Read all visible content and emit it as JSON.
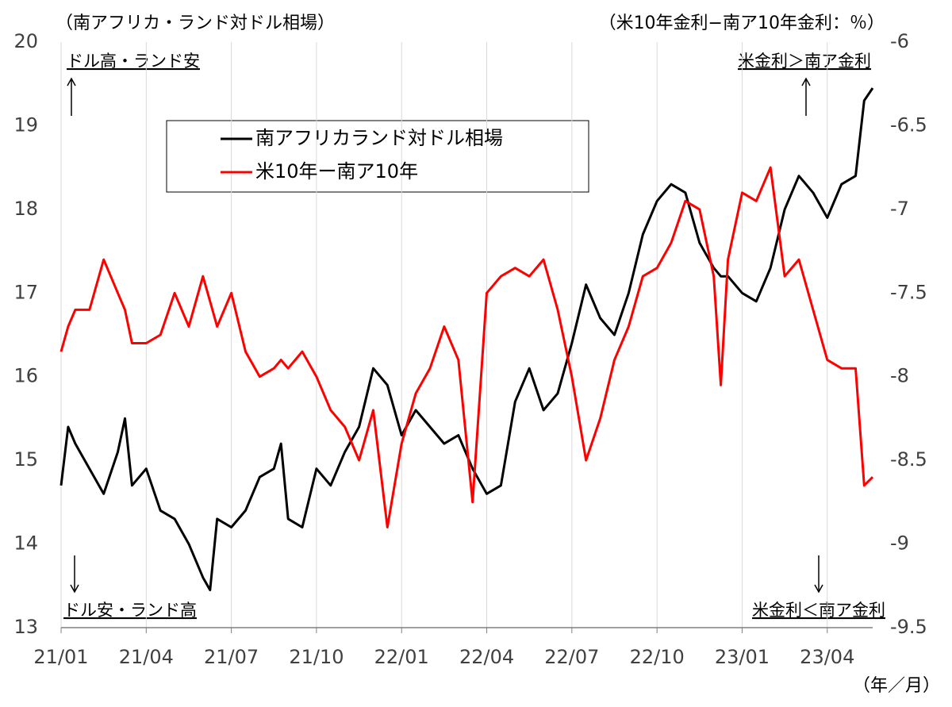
{
  "chart_data": {
    "type": "line",
    "title_left": "（南アフリカ・ランド対ドル相場）",
    "title_right": "（米10年金利−南ア10年金利：％）",
    "x_unit": "（年／月）",
    "annotations": {
      "top_left": "ドル高・ランド安",
      "bottom_left": "ドル安・ランド高",
      "top_right": "米金利＞南ア金利",
      "bottom_right": "米金利＜南ア金利"
    },
    "x": [
      0,
      0.25,
      0.5,
      1,
      1.5,
      2,
      2.25,
      2.5,
      3,
      3.5,
      4,
      4.5,
      5,
      5.25,
      5.5,
      6,
      6.5,
      7,
      7.5,
      7.75,
      8,
      8.5,
      9,
      9.5,
      10,
      10.5,
      11,
      11.5,
      12,
      12.5,
      13,
      13.5,
      14,
      14.5,
      15,
      15.5,
      16,
      16.5,
      17,
      17.5,
      18,
      18.5,
      19,
      19.5,
      20,
      20.5,
      21,
      21.5,
      22,
      22.5,
      23,
      23.25,
      23.5,
      24,
      24.5,
      25,
      25.5,
      26,
      26.5,
      27,
      27.5,
      28,
      28.3,
      28.6
    ],
    "xlim": [
      0,
      28.6
    ],
    "xticks": [
      {
        "value": 0,
        "label": "21/01"
      },
      {
        "value": 3,
        "label": "21/04"
      },
      {
        "value": 6,
        "label": "21/07"
      },
      {
        "value": 9,
        "label": "21/10"
      },
      {
        "value": 12,
        "label": "22/01"
      },
      {
        "value": 15,
        "label": "22/04"
      },
      {
        "value": 18,
        "label": "22/07"
      },
      {
        "value": 21,
        "label": "22/10"
      },
      {
        "value": 24,
        "label": "23/01"
      },
      {
        "value": 27,
        "label": "23/04"
      }
    ],
    "ylim": [
      13,
      20
    ],
    "yticks": [
      13,
      14,
      15,
      16,
      17,
      18,
      19,
      20
    ],
    "y2lim": [
      -9.5,
      -6
    ],
    "y2ticks": [
      -9.5,
      -9,
      -8.5,
      -8,
      -7.5,
      -7,
      -6.5,
      -6
    ],
    "grid": "x",
    "series": [
      {
        "name": "南アフリカランド対ドル相場",
        "color": "#000000",
        "values": [
          14.7,
          15.4,
          15.2,
          14.9,
          14.6,
          15.1,
          15.5,
          14.7,
          14.9,
          14.4,
          14.3,
          14.0,
          13.6,
          13.45,
          14.3,
          14.2,
          14.4,
          14.8,
          14.9,
          15.2,
          14.3,
          14.2,
          14.9,
          14.7,
          15.1,
          15.4,
          16.1,
          15.9,
          15.3,
          15.6,
          15.4,
          15.2,
          15.3,
          14.9,
          14.6,
          14.7,
          15.7,
          16.1,
          15.6,
          15.8,
          16.4,
          17.1,
          16.7,
          16.5,
          17.0,
          17.7,
          18.1,
          18.3,
          18.2,
          17.6,
          17.3,
          17.2,
          17.2,
          17.0,
          16.9,
          17.3,
          18.0,
          18.4,
          18.2,
          17.9,
          18.3,
          18.4,
          19.3,
          19.45
        ]
      },
      {
        "name": "米10年ー南ア10年",
        "color": "#ff0000",
        "axis": "y2",
        "values": [
          -7.85,
          -7.7,
          -7.6,
          -7.6,
          -7.3,
          -7.5,
          -7.6,
          -7.8,
          -7.8,
          -7.75,
          -7.5,
          -7.7,
          -7.4,
          -7.55,
          -7.7,
          -7.5,
          -7.85,
          -8.0,
          -7.95,
          -7.9,
          -7.95,
          -7.85,
          -8.0,
          -8.2,
          -8.3,
          -8.5,
          -8.2,
          -8.9,
          -8.4,
          -8.1,
          -7.95,
          -7.7,
          -7.9,
          -8.75,
          -7.5,
          -7.4,
          -7.35,
          -7.4,
          -7.3,
          -7.6,
          -8.0,
          -8.5,
          -8.25,
          -7.9,
          -7.7,
          -7.4,
          -7.35,
          -7.2,
          -6.95,
          -7.0,
          -7.4,
          -8.05,
          -7.3,
          -6.9,
          -6.95,
          -6.75,
          -7.4,
          -7.3,
          -7.6,
          -7.9,
          -7.95,
          -7.95,
          -8.65,
          -8.6
        ]
      }
    ]
  }
}
